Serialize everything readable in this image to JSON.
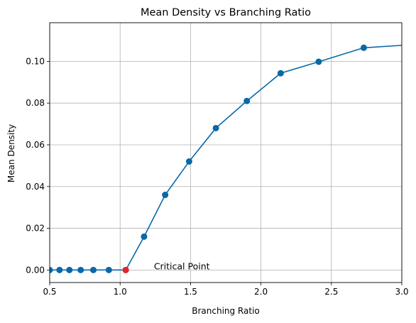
{
  "chart_data": {
    "type": "line",
    "title": "Mean Density vs Branching Ratio",
    "xlabel": "Branching Ratio",
    "ylabel": "Mean Density",
    "xlim": [
      0.5,
      3.0
    ],
    "ylim": [
      -0.006,
      0.1185
    ],
    "grid": true,
    "x_ticks": [
      "0.5",
      "1.0",
      "1.5",
      "2.0",
      "2.5",
      "3.0"
    ],
    "y_ticks": [
      "0.00",
      "0.02",
      "0.04",
      "0.06",
      "0.08",
      "0.10"
    ],
    "series": [
      {
        "color": "#0868a8",
        "points": [
          {
            "x": 0.5,
            "y": 0.0
          },
          {
            "x": 0.57,
            "y": 0.0
          },
          {
            "x": 0.64,
            "y": 0.0
          },
          {
            "x": 0.72,
            "y": 0.0
          },
          {
            "x": 0.81,
            "y": 0.0
          },
          {
            "x": 0.92,
            "y": 0.0
          },
          {
            "x": 1.04,
            "y": 0.0
          },
          {
            "x": 1.17,
            "y": 0.016
          },
          {
            "x": 1.32,
            "y": 0.036
          },
          {
            "x": 1.49,
            "y": 0.052
          },
          {
            "x": 1.68,
            "y": 0.068
          },
          {
            "x": 1.9,
            "y": 0.081
          },
          {
            "x": 2.14,
            "y": 0.0943
          },
          {
            "x": 2.41,
            "y": 0.0998
          },
          {
            "x": 2.73,
            "y": 0.1065
          },
          {
            "x": 3.08,
            "y": 0.108
          }
        ]
      }
    ],
    "highlight_point": {
      "x": 1.04,
      "y": 0.0,
      "color": "#e8222a"
    },
    "annotation": {
      "text": "Critical Point",
      "x": 1.24,
      "y": 0.0
    }
  }
}
